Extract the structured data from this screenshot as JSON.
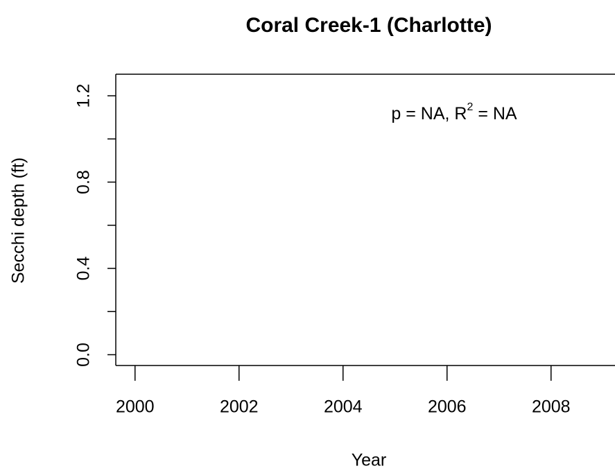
{
  "chart_data": {
    "type": "scatter",
    "title": "Coral Creek-1 (Charlotte)",
    "xlabel": "Year",
    "ylabel": "Secchi depth (ft)",
    "annotation": [
      "p = NA, R",
      "2",
      " = NA"
    ],
    "x": [],
    "values": [],
    "xlim": [
      1999.63,
      2009.23
    ],
    "xticks": [
      2000,
      2002,
      2004,
      2006,
      2008
    ],
    "ylim": [
      -0.05,
      1.3
    ],
    "yticks": [
      {
        "value": 0,
        "label": "0.0"
      },
      0.4,
      0.8,
      1.2
    ],
    "yminorticks": [
      0.2,
      0.6,
      1.0
    ],
    "color": "#000000"
  }
}
